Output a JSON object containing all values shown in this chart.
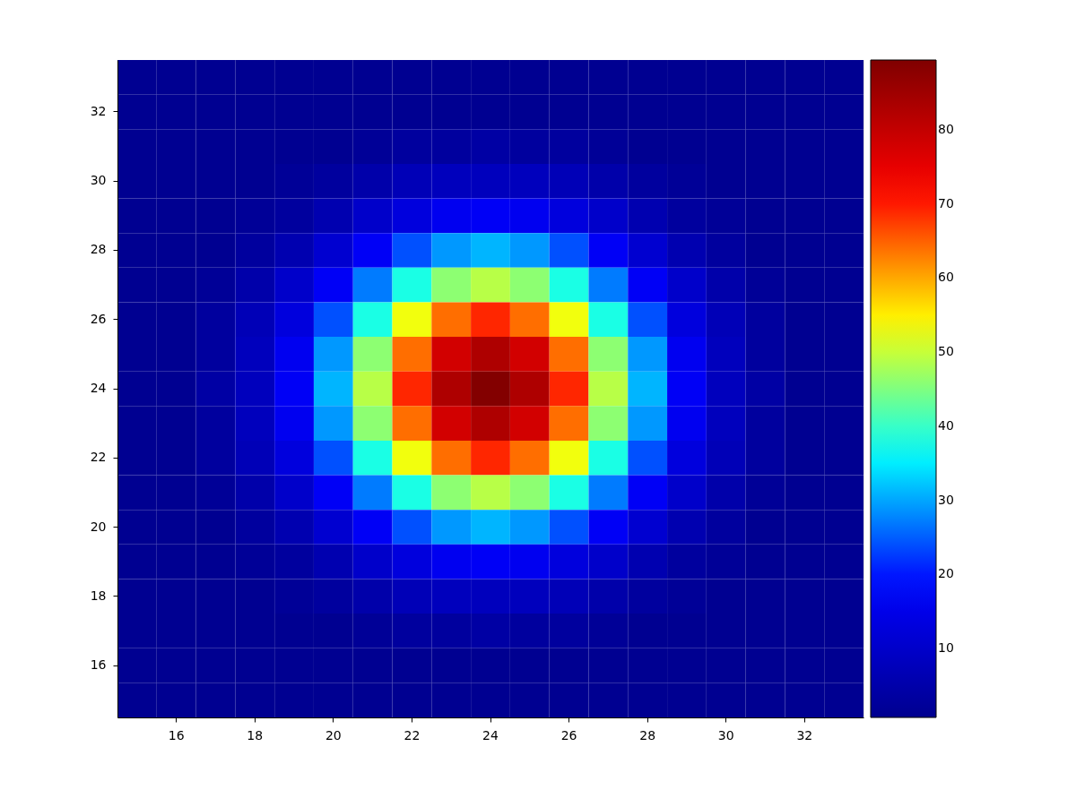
{
  "chart_data": {
    "type": "heatmap",
    "categories": [
      null,
      "16",
      null,
      "18",
      null,
      "20",
      null,
      "22",
      null,
      "24",
      null,
      "26",
      null,
      "28",
      null,
      "30",
      null,
      "32",
      null
    ],
    "y_categories": [
      null,
      "32",
      null,
      "30",
      null,
      "28",
      null,
      "26",
      null,
      "24",
      null,
      "22",
      null,
      "20",
      null,
      "18",
      null,
      "16",
      null
    ],
    "cells": [
      [
        1,
        1,
        1,
        1,
        1,
        1,
        1,
        1,
        1,
        1,
        1,
        1,
        1,
        1,
        1,
        1,
        1,
        1,
        1
      ],
      [
        1,
        1,
        1,
        1,
        1,
        1,
        1,
        1,
        1,
        1,
        1,
        1,
        1,
        1,
        1,
        1,
        1,
        1,
        1
      ],
      [
        1,
        1,
        1,
        1,
        1,
        1,
        2,
        3,
        3,
        4,
        3,
        3,
        2,
        1,
        1,
        1,
        1,
        1,
        1
      ],
      [
        1,
        1,
        1,
        1,
        2,
        3,
        5,
        7,
        8,
        8,
        8,
        7,
        5,
        3,
        2,
        1,
        1,
        1,
        1
      ],
      [
        1,
        1,
        1,
        2,
        3,
        6,
        10,
        13,
        16,
        17,
        16,
        13,
        10,
        6,
        3,
        2,
        1,
        1,
        1
      ],
      [
        1,
        1,
        1,
        3,
        6,
        11,
        17,
        24,
        29,
        31,
        29,
        24,
        17,
        11,
        6,
        3,
        1,
        1,
        1
      ],
      [
        1,
        1,
        2,
        5,
        10,
        17,
        27,
        38,
        46,
        49,
        46,
        38,
        27,
        17,
        10,
        5,
        2,
        1,
        1
      ],
      [
        1,
        1,
        3,
        7,
        13,
        24,
        38,
        53,
        64,
        69,
        64,
        53,
        38,
        24,
        13,
        7,
        3,
        1,
        1
      ],
      [
        1,
        1,
        3,
        8,
        16,
        29,
        46,
        64,
        78,
        83,
        78,
        64,
        46,
        29,
        16,
        8,
        3,
        1,
        1
      ],
      [
        1,
        1,
        4,
        8,
        17,
        31,
        49,
        69,
        83,
        89,
        83,
        69,
        49,
        31,
        17,
        8,
        4,
        1,
        1
      ],
      [
        1,
        1,
        3,
        8,
        16,
        29,
        46,
        64,
        78,
        83,
        78,
        64,
        46,
        29,
        16,
        8,
        3,
        1,
        1
      ],
      [
        1,
        1,
        3,
        7,
        13,
        24,
        38,
        53,
        64,
        69,
        64,
        53,
        38,
        24,
        13,
        7,
        3,
        1,
        1
      ],
      [
        1,
        1,
        2,
        5,
        10,
        17,
        27,
        38,
        46,
        49,
        46,
        38,
        27,
        17,
        10,
        5,
        2,
        1,
        1
      ],
      [
        1,
        1,
        1,
        3,
        6,
        11,
        17,
        24,
        29,
        31,
        29,
        24,
        17,
        11,
        6,
        3,
        1,
        1,
        1
      ],
      [
        1,
        1,
        1,
        2,
        3,
        6,
        10,
        13,
        16,
        17,
        16,
        13,
        10,
        6,
        3,
        2,
        1,
        1,
        1
      ],
      [
        1,
        1,
        1,
        1,
        2,
        3,
        5,
        7,
        8,
        8,
        8,
        7,
        5,
        3,
        2,
        1,
        1,
        1,
        1
      ],
      [
        1,
        1,
        1,
        1,
        1,
        1,
        2,
        3,
        3,
        4,
        3,
        3,
        2,
        1,
        1,
        1,
        1,
        1,
        1
      ],
      [
        1,
        1,
        1,
        1,
        1,
        1,
        1,
        1,
        1,
        1,
        1,
        1,
        1,
        1,
        1,
        1,
        1,
        1,
        1
      ],
      [
        1,
        1,
        1,
        1,
        1,
        1,
        1,
        1,
        1,
        1,
        1,
        1,
        1,
        1,
        1,
        1,
        1,
        1,
        1
      ]
    ],
    "clim": [
      0.7,
      89.4
    ],
    "cticks": [
      10,
      20,
      30,
      40,
      50,
      60,
      70,
      80
    ]
  }
}
